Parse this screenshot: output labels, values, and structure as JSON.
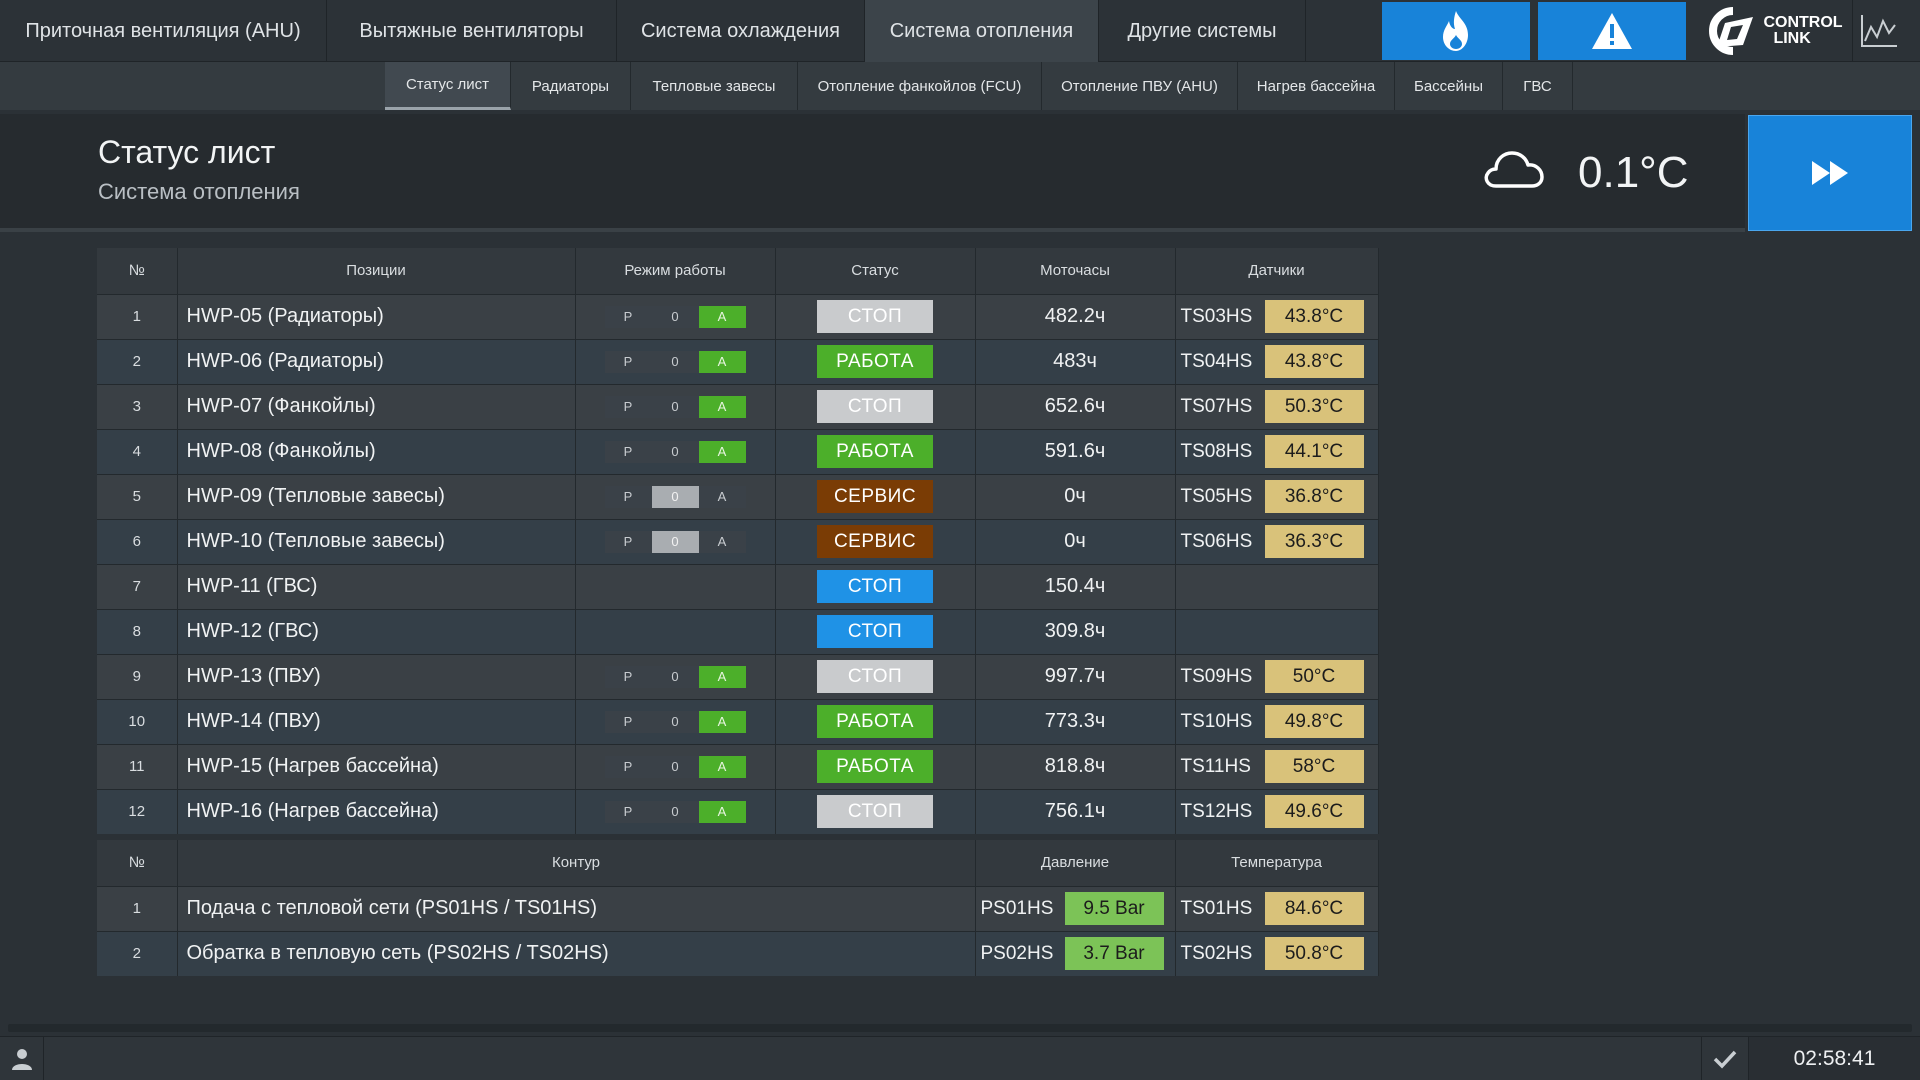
{
  "topnav": {
    "tabs": [
      {
        "label": "Приточная вентиляция (AHU)"
      },
      {
        "label": "Вытяжные вентиляторы"
      },
      {
        "label": "Система охлаждения"
      },
      {
        "label": "Система отопления"
      },
      {
        "label": "Другие системы"
      }
    ],
    "active_tab": 3,
    "logo_text_1": "CONTROL",
    "logo_text_2": "LINK",
    "accent": "#1883d9"
  },
  "subnav": {
    "items": [
      {
        "label": "Статус лист"
      },
      {
        "label": "Радиаторы"
      },
      {
        "label": "Тепловые завесы"
      },
      {
        "label": "Отопление фанкойлов (FCU)"
      },
      {
        "label": "Отопление ПВУ (AHU)"
      },
      {
        "label": "Нагрев бассейна"
      },
      {
        "label": "Бассейны"
      },
      {
        "label": "ГВС"
      }
    ],
    "active_item": 0
  },
  "header": {
    "title": "Статус лист",
    "subtitle": "Система отопления",
    "outdoor_temp": "0.1°C"
  },
  "main_table": {
    "headers": [
      "№",
      "Позиции",
      "Режим работы",
      "Статус",
      "Моточасы",
      "Датчики"
    ],
    "mode_labels": [
      "P",
      "0",
      "A"
    ],
    "rows": [
      {
        "n": "1",
        "pos": "HWP-05 (Радиаторы)",
        "mode": "A",
        "status": "СТОП",
        "kind": "stop",
        "hours": "482.2ч",
        "sensor": "TS03HS",
        "temp": "43.8°C"
      },
      {
        "n": "2",
        "pos": "HWP-06 (Радиаторы)",
        "mode": "A",
        "status": "РАБОТА",
        "kind": "run",
        "hours": "483ч",
        "sensor": "TS04HS",
        "temp": "43.8°C"
      },
      {
        "n": "3",
        "pos": "HWP-07 (Фанкойлы)",
        "mode": "A",
        "status": "СТОП",
        "kind": "stop",
        "hours": "652.6ч",
        "sensor": "TS07HS",
        "temp": "50.3°C"
      },
      {
        "n": "4",
        "pos": "HWP-08 (Фанкойлы)",
        "mode": "A",
        "status": "РАБОТА",
        "kind": "run",
        "hours": "591.6ч",
        "sensor": "TS08HS",
        "temp": "44.1°C"
      },
      {
        "n": "5",
        "pos": "HWP-09 (Тепловые завесы)",
        "mode": "0",
        "status": "СЕРВИС",
        "kind": "svc",
        "hours": "0ч",
        "sensor": "TS05HS",
        "temp": "36.8°C"
      },
      {
        "n": "6",
        "pos": "HWP-10 (Тепловые завесы)",
        "mode": "0",
        "status": "СЕРВИС",
        "kind": "svc",
        "hours": "0ч",
        "sensor": "TS06HS",
        "temp": "36.3°C"
      },
      {
        "n": "7",
        "pos": "HWP-11 (ГВС)",
        "mode": "",
        "status": "СТОП",
        "kind": "stopb",
        "hours": "150.4ч",
        "sensor": "",
        "temp": ""
      },
      {
        "n": "8",
        "pos": "HWP-12 (ГВС)",
        "mode": "",
        "status": "СТОП",
        "kind": "stopb",
        "hours": "309.8ч",
        "sensor": "",
        "temp": ""
      },
      {
        "n": "9",
        "pos": "HWP-13 (ПВУ)",
        "mode": "A",
        "status": "СТОП",
        "kind": "stop",
        "hours": "997.7ч",
        "sensor": "TS09HS",
        "temp": "50°C"
      },
      {
        "n": "10",
        "pos": "HWP-14 (ПВУ)",
        "mode": "A",
        "status": "РАБОТА",
        "kind": "run",
        "hours": "773.3ч",
        "sensor": "TS10HS",
        "temp": "49.8°C"
      },
      {
        "n": "11",
        "pos": "HWP-15 (Нагрев бассейна)",
        "mode": "A",
        "status": "РАБОТА",
        "kind": "run",
        "hours": "818.8ч",
        "sensor": "TS11HS",
        "temp": "58°C"
      },
      {
        "n": "12",
        "pos": "HWP-16 (Нагрев бассейна)",
        "mode": "A",
        "status": "СТОП",
        "kind": "stop",
        "hours": "756.1ч",
        "sensor": "TS12HS",
        "temp": "49.6°C"
      }
    ]
  },
  "loop_table": {
    "headers": [
      "№",
      "Контур",
      "Давление",
      "Температура"
    ],
    "rows": [
      {
        "n": "1",
        "name": "Подача с тепловой сети (PS01HS / TS01HS)",
        "psensor": "PS01HS",
        "pval": "9.5 Bar",
        "tsensor": "TS01HS",
        "tval": "84.6°C"
      },
      {
        "n": "2",
        "name": "Обратка в тепловую сеть (PS02HS / TS02HS)",
        "psensor": "PS02HS",
        "pval": "3.7 Bar",
        "tsensor": "TS02HS",
        "tval": "50.8°C"
      }
    ]
  },
  "footer": {
    "time": "02:58:41"
  },
  "icons": {
    "fire": "fire-icon",
    "alarm": "warning-icon",
    "chart": "chart-icon",
    "weather": "cloud-icon",
    "next": "fast-forward-icon",
    "user": "user-icon",
    "ack": "check-icon"
  }
}
